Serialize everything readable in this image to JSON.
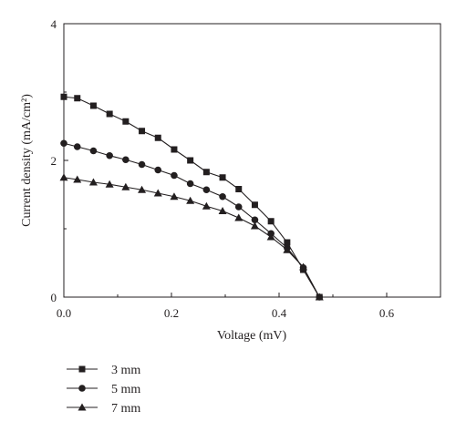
{
  "chart_data": {
    "type": "line",
    "title": "",
    "xlabel": "Voltage (mV)",
    "ylabel": "Current density (mA/cm²)",
    "xlim": [
      0,
      0.7
    ],
    "ylim": [
      0,
      4
    ],
    "xticks": [
      "0.0",
      "0.2",
      "0.4",
      "0.6"
    ],
    "yticks": [
      "0",
      "2",
      "4"
    ],
    "grid": false,
    "legend_position": "bottom-left, below plot",
    "series": [
      {
        "name": "3 mm",
        "marker": "square",
        "x": [
          0.0,
          0.025,
          0.055,
          0.085,
          0.115,
          0.145,
          0.175,
          0.205,
          0.235,
          0.265,
          0.295,
          0.325,
          0.355,
          0.385,
          0.415,
          0.445,
          0.475
        ],
        "y": [
          2.93,
          2.91,
          2.8,
          2.68,
          2.57,
          2.43,
          2.33,
          2.16,
          2.0,
          1.83,
          1.75,
          1.58,
          1.35,
          1.11,
          0.8,
          0.4,
          0.0
        ]
      },
      {
        "name": "5 mm",
        "marker": "circle",
        "x": [
          0.0,
          0.025,
          0.055,
          0.085,
          0.115,
          0.145,
          0.175,
          0.205,
          0.235,
          0.265,
          0.295,
          0.325,
          0.355,
          0.385,
          0.415,
          0.445,
          0.475
        ],
        "y": [
          2.25,
          2.2,
          2.14,
          2.07,
          2.01,
          1.94,
          1.86,
          1.78,
          1.66,
          1.57,
          1.47,
          1.32,
          1.13,
          0.93,
          0.72,
          0.43,
          0.0
        ]
      },
      {
        "name": "7 mm",
        "marker": "triangle",
        "x": [
          0.0,
          0.025,
          0.055,
          0.085,
          0.115,
          0.145,
          0.175,
          0.205,
          0.235,
          0.265,
          0.295,
          0.325,
          0.355,
          0.385,
          0.415,
          0.445,
          0.475
        ],
        "y": [
          1.75,
          1.72,
          1.68,
          1.65,
          1.61,
          1.57,
          1.52,
          1.47,
          1.41,
          1.33,
          1.26,
          1.16,
          1.04,
          0.88,
          0.69,
          0.44,
          0.0
        ]
      }
    ]
  }
}
